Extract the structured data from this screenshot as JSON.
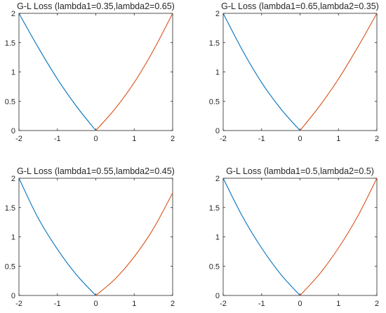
{
  "chart_data": [
    {
      "type": "line",
      "title": "G-L Loss (lambda1=0.35,lambda2=0.65)",
      "xlim": [
        -2,
        2
      ],
      "ylim": [
        0,
        2
      ],
      "xticks": [
        -2,
        -1,
        0,
        1,
        2
      ],
      "yticks": [
        0,
        0.5,
        1,
        1.5,
        2
      ],
      "xtick_labels": [
        "-2",
        "-1",
        "0",
        "1",
        "2"
      ],
      "ytick_labels": [
        "0",
        "0.5",
        "1",
        "1.5",
        "2"
      ],
      "grid": false,
      "series": [
        {
          "color": "#0072BD",
          "x": [
            -2,
            -1.5,
            -1,
            -0.5,
            0
          ],
          "y": [
            2,
            1.42,
            0.88,
            0.41,
            0
          ]
        },
        {
          "color": "#D95319",
          "x": [
            0,
            0.5,
            1,
            1.5,
            2
          ],
          "y": [
            0,
            0.37,
            0.82,
            1.37,
            2
          ]
        }
      ]
    },
    {
      "type": "line",
      "title": "G-L Loss (lambda1=0.65,lambda2=0.35)",
      "xlim": [
        -2,
        2
      ],
      "ylim": [
        0,
        2
      ],
      "xticks": [
        -2,
        -1,
        0,
        1,
        2
      ],
      "yticks": [
        0,
        0.5,
        1,
        1.5,
        2
      ],
      "xtick_labels": [
        "-2",
        "-1",
        "0",
        "1",
        "2"
      ],
      "ytick_labels": [
        "0",
        "0.5",
        "1",
        "1.5",
        "2"
      ],
      "grid": false,
      "series": [
        {
          "color": "#0072BD",
          "x": [
            -2,
            -1.5,
            -1,
            -0.5,
            0
          ],
          "y": [
            2,
            1.37,
            0.82,
            0.37,
            0
          ]
        },
        {
          "color": "#D95319",
          "x": [
            0,
            0.5,
            1,
            1.5,
            2
          ],
          "y": [
            0,
            0.41,
            0.88,
            1.42,
            2
          ]
        }
      ]
    },
    {
      "type": "line",
      "title": "G-L Loss (lambda1=0.55,lambda2=0.45)",
      "xlim": [
        -2,
        2
      ],
      "ylim": [
        0,
        2
      ],
      "xticks": [
        -2,
        -1,
        0,
        1,
        2
      ],
      "yticks": [
        0,
        0.5,
        1,
        1.5,
        2
      ],
      "xtick_labels": [
        "-2",
        "-1",
        "0",
        "1",
        "2"
      ],
      "ytick_labels": [
        "0",
        "0.5",
        "1",
        "1.5",
        "2"
      ],
      "grid": false,
      "series": [
        {
          "color": "#0072BD",
          "x": [
            -2,
            -1.5,
            -1,
            -0.5,
            0
          ],
          "y": [
            2,
            1.32,
            0.79,
            0.35,
            0
          ]
        },
        {
          "color": "#D95319",
          "x": [
            0,
            0.5,
            1,
            1.5,
            2
          ],
          "y": [
            0,
            0.28,
            0.66,
            1.14,
            1.75
          ]
        }
      ]
    },
    {
      "type": "line",
      "title": "G-L Loss (lambda1=0.5,lambda2=0.5)",
      "xlim": [
        -2,
        2
      ],
      "ylim": [
        0,
        2
      ],
      "xticks": [
        -2,
        -1,
        0,
        1,
        2
      ],
      "yticks": [
        0,
        0.5,
        1,
        1.5,
        2
      ],
      "xtick_labels": [
        "-2",
        "-1",
        "0",
        "1",
        "2"
      ],
      "ytick_labels": [
        "0",
        "0.5",
        "1",
        "1.5",
        "2"
      ],
      "grid": false,
      "series": [
        {
          "color": "#0072BD",
          "x": [
            -2,
            -1.5,
            -1,
            -0.5,
            0
          ],
          "y": [
            2,
            1.35,
            0.81,
            0.36,
            0
          ]
        },
        {
          "color": "#D95319",
          "x": [
            0,
            0.5,
            1,
            1.5,
            2
          ],
          "y": [
            0,
            0.36,
            0.81,
            1.35,
            2
          ]
        }
      ]
    }
  ]
}
